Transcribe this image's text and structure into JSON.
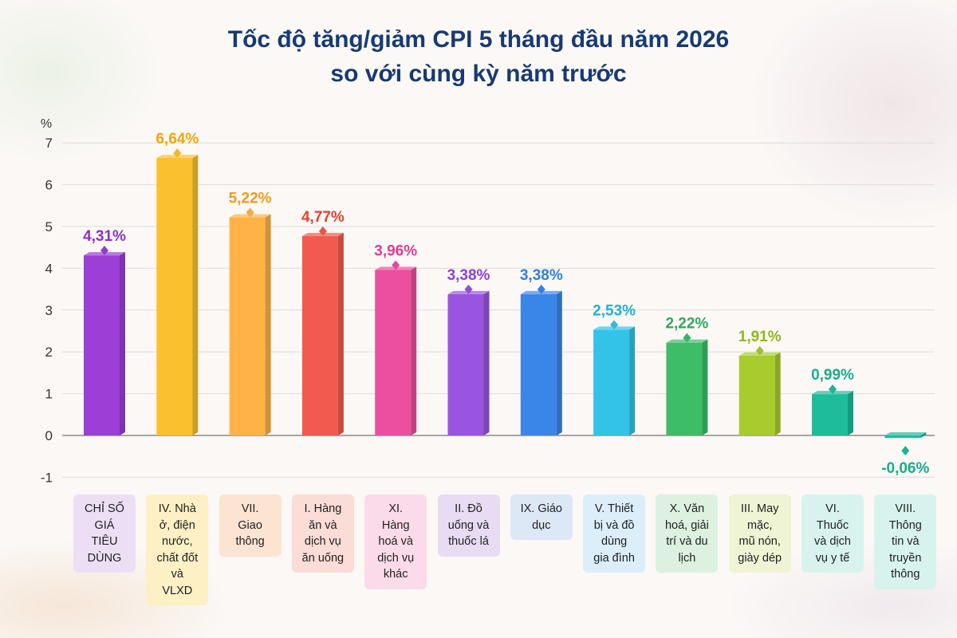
{
  "title": {
    "line1": "Tốc độ tăng/giảm CPI 5 tháng đầu năm 2026",
    "line2": "so với cùng kỳ năm trước"
  },
  "chart_data": {
    "type": "bar",
    "title": "Tốc độ tăng/giảm CPI 5 tháng đầu năm 2026 so với cùng kỳ năm trước",
    "ylabel": "%",
    "ylim": [
      -1,
      7
    ],
    "yticks": [
      "-1",
      "0",
      "1",
      "2",
      "3",
      "4",
      "5",
      "6",
      "7"
    ],
    "grid": true,
    "categories": [
      "CHỈ SỐ GIÁ TIÊU DÙNG",
      "IV. Nhà ở, điện nước, chất đốt và VLXD",
      "VII. Giao thông",
      "I. Hàng ăn và dịch vụ ăn uống",
      "XI. Hàng hoá và dịch vụ khác",
      "II. Đồ uống và thuốc lá",
      "IX. Giáo dục",
      "V. Thiết bị và đồ dùng gia đình",
      "X. Văn hoá, giải trí và du lịch",
      "III. May mặc, mũ nón, giày dép",
      "VI. Thuốc và dịch vụ y tế",
      "VIII. Thông tin và truyền thông"
    ],
    "label_lines": [
      [
        "CHỈ SỐ",
        "GIÁ",
        "TIÊU",
        "DÙNG"
      ],
      [
        "IV. Nhà",
        "ở, điện",
        "nước,",
        "chất đốt",
        "và",
        "VLXD"
      ],
      [
        "VII.",
        "Giao",
        "thông"
      ],
      [
        "I. Hàng",
        "ăn và",
        "dịch vụ",
        "ăn uống"
      ],
      [
        "XI.",
        "Hàng",
        "hoá và",
        "dịch vụ",
        "khác"
      ],
      [
        "II. Đồ",
        "uống và",
        "thuốc lá"
      ],
      [
        "IX. Giáo",
        "dục"
      ],
      [
        "V. Thiết",
        "bị và đồ",
        "dùng",
        "gia đình"
      ],
      [
        "X. Văn",
        "hoá, giải",
        "trí và du",
        "lịch"
      ],
      [
        "III. May",
        "mặc,",
        "mũ nón,",
        "giày dép"
      ],
      [
        "VI.",
        "Thuốc",
        "và dịch",
        "vụ y tế"
      ],
      [
        "VIII.",
        "Thông",
        "tin và",
        "truyền",
        "thông"
      ]
    ],
    "values": [
      4.31,
      6.64,
      5.22,
      4.77,
      3.96,
      3.38,
      3.38,
      2.53,
      2.22,
      1.91,
      0.99,
      -0.06
    ],
    "data_labels": [
      "4,31%",
      "6,64%",
      "5,22%",
      "4,77%",
      "3,96%",
      "3,38%",
      "3,38%",
      "2,53%",
      "2,22%",
      "1,91%",
      "0,99%",
      "-0,06%"
    ],
    "colors": [
      "#9b3fd6",
      "#fbc02d",
      "#ffb347",
      "#f25a4e",
      "#ec4fa0",
      "#9a55e0",
      "#3a86e8",
      "#33c3e8",
      "#3dbd68",
      "#a8cc2e",
      "#1fbc9c",
      "#1fbc9c"
    ],
    "label_colors": [
      "#8e2fc9",
      "#f5a40a",
      "#f39a1e",
      "#e5402f",
      "#e13c91",
      "#8c42d6",
      "#2f7fe0",
      "#22afd6",
      "#2ea85a",
      "#8db81f",
      "#17ad8c",
      "#17ad8c"
    ],
    "label_bg": [
      "#ecdff5",
      "#fdf0c4",
      "#fde3d2",
      "#fbdcd6",
      "#fbdbe9",
      "#e8dcf4",
      "#dde8f7",
      "#dbeefa",
      "#dcf1df",
      "#eef4d4",
      "#d8f3ee",
      "#d8f3ee"
    ]
  }
}
